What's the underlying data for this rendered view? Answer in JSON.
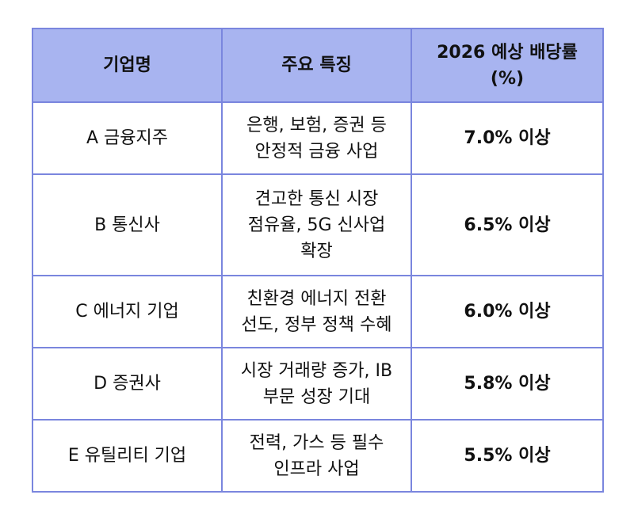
{
  "table": {
    "headers": [
      "기업명",
      "주요 특징",
      "2026 예상 배당률 (%)"
    ],
    "rows": [
      {
        "company": "A 금융지주",
        "feature": "은행, 보험, 증권 등 안정적 금융 사업",
        "rate": "7.0% 이상"
      },
      {
        "company": "B 통신사",
        "feature": "견고한 통신 시장 점유율, 5G 신사업 확장",
        "rate": "6.5% 이상"
      },
      {
        "company": "C 에너지 기업",
        "feature": "친환경 에너지 전환 선도, 정부 정책 수혜",
        "rate": "6.0% 이상"
      },
      {
        "company": "D 증권사",
        "feature": "시장 거래량 증가, IB 부문 성장 기대",
        "rate": "5.8% 이상"
      },
      {
        "company": "E 유틸리티 기업",
        "feature": "전력, 가스 등 필수 인프라 사업",
        "rate": "5.5% 이상"
      }
    ]
  },
  "colors": {
    "header_bg": "#a8b4f0",
    "border": "#7a86de",
    "text": "#111111"
  }
}
